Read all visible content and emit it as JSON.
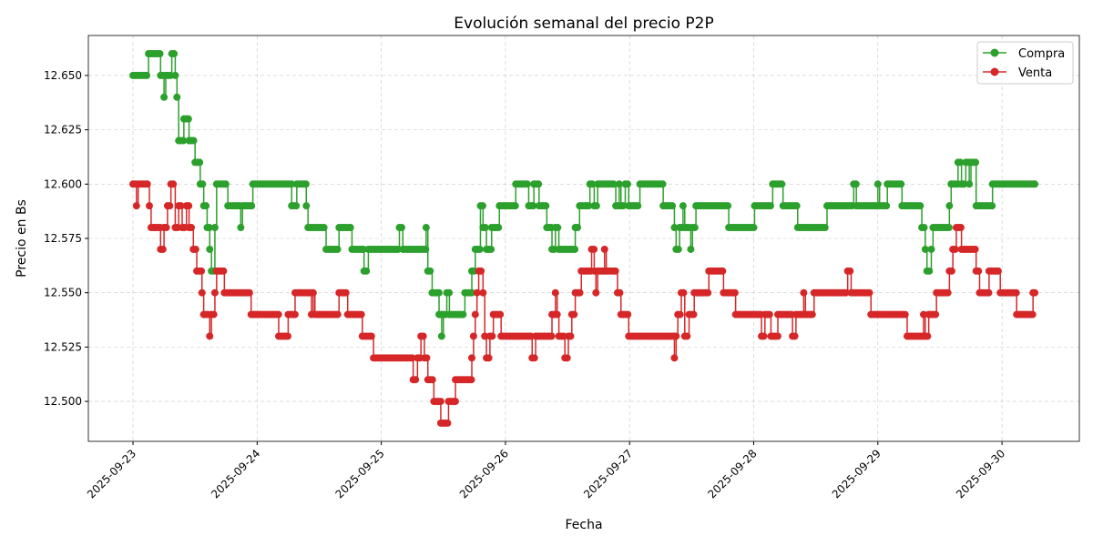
{
  "chart_data": {
    "type": "line",
    "title": "Evolución semanal del precio P2P",
    "xlabel": "Fecha",
    "ylabel": "Precio en Bs",
    "xlim": [
      "2025-09-22 15:22",
      "2025-09-30 14:57"
    ],
    "ylim": [
      12.4816,
      12.6684
    ],
    "x_ticks": [
      "2025-09-23",
      "2025-09-24",
      "2025-09-25",
      "2025-09-26",
      "2025-09-27",
      "2025-09-28",
      "2025-09-29",
      "2025-09-30"
    ],
    "y_ticks": [
      "12.500",
      "12.525",
      "12.550",
      "12.575",
      "12.600",
      "12.625",
      "12.650"
    ],
    "grid": true,
    "legend_position": "top-right",
    "series": [
      {
        "name": "Compra",
        "color": "#2ca02c",
        "marker": "circle",
        "points": [
          [
            "2025-09-23 00:00",
            12.65
          ],
          [
            "2025-09-23 03:00",
            12.66
          ],
          [
            "2025-09-23 05:20",
            12.65
          ],
          [
            "2025-09-23 06:00",
            12.64
          ],
          [
            "2025-09-23 06:20",
            12.65
          ],
          [
            "2025-09-23 07:30",
            12.66
          ],
          [
            "2025-09-23 08:10",
            12.65
          ],
          [
            "2025-09-23 08:30",
            12.64
          ],
          [
            "2025-09-23 08:50",
            12.62
          ],
          [
            "2025-09-23 09:50",
            12.63
          ],
          [
            "2025-09-23 10:50",
            12.62
          ],
          [
            "2025-09-23 12:00",
            12.61
          ],
          [
            "2025-09-23 13:00",
            12.6
          ],
          [
            "2025-09-23 13:40",
            12.59
          ],
          [
            "2025-09-23 14:20",
            12.58
          ],
          [
            "2025-09-23 14:50",
            12.57
          ],
          [
            "2025-09-23 15:10",
            12.56
          ],
          [
            "2025-09-23 15:50",
            12.58
          ],
          [
            "2025-09-23 16:10",
            12.6
          ],
          [
            "2025-09-23 18:20",
            12.59
          ],
          [
            "2025-09-23 20:50",
            12.58
          ],
          [
            "2025-09-23 21:10",
            12.59
          ],
          [
            "2025-09-23 23:10",
            12.6
          ],
          [
            "2025-09-24 06:40",
            12.59
          ],
          [
            "2025-09-24 07:40",
            12.6
          ],
          [
            "2025-09-24 09:30",
            12.59
          ],
          [
            "2025-09-24 09:50",
            12.58
          ],
          [
            "2025-09-24 13:20",
            12.57
          ],
          [
            "2025-09-24 15:50",
            12.58
          ],
          [
            "2025-09-24 18:20",
            12.57
          ],
          [
            "2025-09-24 20:40",
            12.56
          ],
          [
            "2025-09-24 21:30",
            12.57
          ],
          [
            "2025-09-25 03:30",
            12.58
          ],
          [
            "2025-09-25 04:10",
            12.57
          ],
          [
            "2025-09-25 08:40",
            12.58
          ],
          [
            "2025-09-25 09:00",
            12.56
          ],
          [
            "2025-09-25 09:50",
            12.55
          ],
          [
            "2025-09-25 11:10",
            12.54
          ],
          [
            "2025-09-25 11:40",
            12.53
          ],
          [
            "2025-09-25 12:00",
            12.54
          ],
          [
            "2025-09-25 12:40",
            12.55
          ],
          [
            "2025-09-25 13:10",
            12.54
          ],
          [
            "2025-09-25 16:10",
            12.55
          ],
          [
            "2025-09-25 17:30",
            12.56
          ],
          [
            "2025-09-25 18:10",
            12.57
          ],
          [
            "2025-09-25 19:10",
            12.59
          ],
          [
            "2025-09-25 19:40",
            12.58
          ],
          [
            "2025-09-25 20:20",
            12.57
          ],
          [
            "2025-09-25 21:20",
            12.58
          ],
          [
            "2025-09-25 22:50",
            12.59
          ],
          [
            "2025-09-26 02:00",
            12.6
          ],
          [
            "2025-09-26 04:30",
            12.59
          ],
          [
            "2025-09-26 05:30",
            12.6
          ],
          [
            "2025-09-26 06:30",
            12.59
          ],
          [
            "2025-09-26 08:00",
            12.58
          ],
          [
            "2025-09-26 09:00",
            12.57
          ],
          [
            "2025-09-26 09:40",
            12.58
          ],
          [
            "2025-09-26 10:20",
            12.57
          ],
          [
            "2025-09-26 13:30",
            12.58
          ],
          [
            "2025-09-26 14:20",
            12.59
          ],
          [
            "2025-09-26 16:20",
            12.6
          ],
          [
            "2025-09-26 17:10",
            12.59
          ],
          [
            "2025-09-26 17:50",
            12.6
          ],
          [
            "2025-09-26 21:20",
            12.59
          ],
          [
            "2025-09-26 22:00",
            12.6
          ],
          [
            "2025-09-26 22:20",
            12.59
          ],
          [
            "2025-09-26 23:10",
            12.6
          ],
          [
            "2025-09-26 23:50",
            12.59
          ],
          [
            "2025-09-27 02:00",
            12.6
          ],
          [
            "2025-09-27 06:30",
            12.59
          ],
          [
            "2025-09-27 08:40",
            12.58
          ],
          [
            "2025-09-27 09:00",
            12.57
          ],
          [
            "2025-09-27 09:40",
            12.58
          ],
          [
            "2025-09-27 10:20",
            12.59
          ],
          [
            "2025-09-27 10:40",
            12.58
          ],
          [
            "2025-09-27 11:50",
            12.57
          ],
          [
            "2025-09-27 12:10",
            12.58
          ],
          [
            "2025-09-27 12:50",
            12.59
          ],
          [
            "2025-09-27 19:10",
            12.58
          ],
          [
            "2025-09-28 00:10",
            12.59
          ],
          [
            "2025-09-28 03:40",
            12.6
          ],
          [
            "2025-09-28 05:40",
            12.59
          ],
          [
            "2025-09-28 08:30",
            12.58
          ],
          [
            "2025-09-28 14:10",
            12.59
          ],
          [
            "2025-09-28 19:20",
            12.6
          ],
          [
            "2025-09-28 19:50",
            12.59
          ],
          [
            "2025-09-29 00:00",
            12.6
          ],
          [
            "2025-09-29 00:20",
            12.59
          ],
          [
            "2025-09-29 01:50",
            12.6
          ],
          [
            "2025-09-29 04:40",
            12.59
          ],
          [
            "2025-09-29 08:30",
            12.58
          ],
          [
            "2025-09-29 09:10",
            12.57
          ],
          [
            "2025-09-29 09:30",
            12.56
          ],
          [
            "2025-09-29 10:20",
            12.57
          ],
          [
            "2025-09-29 10:40",
            12.58
          ],
          [
            "2025-09-29 13:50",
            12.59
          ],
          [
            "2025-09-29 14:10",
            12.6
          ],
          [
            "2025-09-29 15:30",
            12.61
          ],
          [
            "2025-09-29 16:10",
            12.6
          ],
          [
            "2025-09-29 17:00",
            12.61
          ],
          [
            "2025-09-29 17:40",
            12.6
          ],
          [
            "2025-09-29 18:00",
            12.61
          ],
          [
            "2025-09-29 19:00",
            12.59
          ],
          [
            "2025-09-29 22:10",
            12.6
          ],
          [
            "2025-09-30 06:20",
            12.6
          ]
        ]
      },
      {
        "name": "Venta",
        "color": "#d62728",
        "marker": "circle",
        "points": [
          [
            "2025-09-23 00:00",
            12.6
          ],
          [
            "2025-09-23 00:40",
            12.59
          ],
          [
            "2025-09-23 01:00",
            12.6
          ],
          [
            "2025-09-23 03:10",
            12.59
          ],
          [
            "2025-09-23 03:30",
            12.58
          ],
          [
            "2025-09-23 05:20",
            12.57
          ],
          [
            "2025-09-23 06:00",
            12.58
          ],
          [
            "2025-09-23 06:40",
            12.59
          ],
          [
            "2025-09-23 07:20",
            12.6
          ],
          [
            "2025-09-23 08:10",
            12.58
          ],
          [
            "2025-09-23 08:50",
            12.59
          ],
          [
            "2025-09-23 09:30",
            12.58
          ],
          [
            "2025-09-23 10:20",
            12.59
          ],
          [
            "2025-09-23 10:50",
            12.58
          ],
          [
            "2025-09-23 11:40",
            12.57
          ],
          [
            "2025-09-23 12:20",
            12.56
          ],
          [
            "2025-09-23 13:20",
            12.55
          ],
          [
            "2025-09-23 13:40",
            12.54
          ],
          [
            "2025-09-23 14:50",
            12.53
          ],
          [
            "2025-09-23 15:10",
            12.54
          ],
          [
            "2025-09-23 15:50",
            12.55
          ],
          [
            "2025-09-23 16:10",
            12.56
          ],
          [
            "2025-09-23 17:40",
            12.55
          ],
          [
            "2025-09-23 22:50",
            12.54
          ],
          [
            "2025-09-24 04:10",
            12.53
          ],
          [
            "2025-09-24 06:00",
            12.54
          ],
          [
            "2025-09-24 07:20",
            12.55
          ],
          [
            "2025-09-24 10:30",
            12.54
          ],
          [
            "2025-09-24 10:50",
            12.55
          ],
          [
            "2025-09-24 11:10",
            12.54
          ],
          [
            "2025-09-24 15:50",
            12.55
          ],
          [
            "2025-09-24 17:30",
            12.54
          ],
          [
            "2025-09-24 20:20",
            12.53
          ],
          [
            "2025-09-24 22:30",
            12.52
          ],
          [
            "2025-09-25 06:10",
            12.51
          ],
          [
            "2025-09-25 07:00",
            12.52
          ],
          [
            "2025-09-25 07:40",
            12.53
          ],
          [
            "2025-09-25 08:20",
            12.52
          ],
          [
            "2025-09-25 09:00",
            12.51
          ],
          [
            "2025-09-25 10:10",
            12.5
          ],
          [
            "2025-09-25 11:30",
            12.49
          ],
          [
            "2025-09-25 13:00",
            12.5
          ],
          [
            "2025-09-25 14:20",
            12.51
          ],
          [
            "2025-09-25 17:30",
            12.52
          ],
          [
            "2025-09-25 17:50",
            12.53
          ],
          [
            "2025-09-25 18:10",
            12.54
          ],
          [
            "2025-09-25 18:30",
            12.55
          ],
          [
            "2025-09-25 18:50",
            12.56
          ],
          [
            "2025-09-25 19:40",
            12.55
          ],
          [
            "2025-09-25 20:00",
            12.53
          ],
          [
            "2025-09-25 20:20",
            12.52
          ],
          [
            "2025-09-25 21:00",
            12.53
          ],
          [
            "2025-09-25 21:40",
            12.54
          ],
          [
            "2025-09-25 23:10",
            12.53
          ],
          [
            "2025-09-26 05:10",
            12.52
          ],
          [
            "2025-09-26 05:50",
            12.53
          ],
          [
            "2025-09-26 09:00",
            12.54
          ],
          [
            "2025-09-26 09:40",
            12.55
          ],
          [
            "2025-09-26 10:00",
            12.54
          ],
          [
            "2025-09-26 10:20",
            12.53
          ],
          [
            "2025-09-26 11:30",
            12.52
          ],
          [
            "2025-09-26 12:10",
            12.53
          ],
          [
            "2025-09-26 12:50",
            12.54
          ],
          [
            "2025-09-26 13:30",
            12.55
          ],
          [
            "2025-09-26 14:40",
            12.56
          ],
          [
            "2025-09-26 16:40",
            12.57
          ],
          [
            "2025-09-26 17:10",
            12.56
          ],
          [
            "2025-09-26 17:30",
            12.55
          ],
          [
            "2025-09-26 17:50",
            12.56
          ],
          [
            "2025-09-26 19:10",
            12.57
          ],
          [
            "2025-09-26 19:30",
            12.56
          ],
          [
            "2025-09-26 21:40",
            12.55
          ],
          [
            "2025-09-26 22:20",
            12.54
          ],
          [
            "2025-09-26 23:50",
            12.53
          ],
          [
            "2025-09-27 08:40",
            12.52
          ],
          [
            "2025-09-27 09:00",
            12.53
          ],
          [
            "2025-09-27 09:20",
            12.54
          ],
          [
            "2025-09-27 10:00",
            12.55
          ],
          [
            "2025-09-27 10:40",
            12.53
          ],
          [
            "2025-09-27 11:30",
            12.54
          ],
          [
            "2025-09-27 12:30",
            12.55
          ],
          [
            "2025-09-27 15:20",
            12.56
          ],
          [
            "2025-09-27 18:10",
            12.55
          ],
          [
            "2025-09-27 20:30",
            12.54
          ],
          [
            "2025-09-28 01:30",
            12.53
          ],
          [
            "2025-09-28 02:10",
            12.54
          ],
          [
            "2025-09-28 03:20",
            12.53
          ],
          [
            "2025-09-28 04:40",
            12.54
          ],
          [
            "2025-09-28 07:30",
            12.53
          ],
          [
            "2025-09-28 08:10",
            12.54
          ],
          [
            "2025-09-28 09:40",
            12.55
          ],
          [
            "2025-09-28 10:00",
            12.54
          ],
          [
            "2025-09-28 11:40",
            12.55
          ],
          [
            "2025-09-28 18:10",
            12.56
          ],
          [
            "2025-09-28 18:50",
            12.55
          ],
          [
            "2025-09-28 22:40",
            12.54
          ],
          [
            "2025-09-29 05:40",
            12.53
          ],
          [
            "2025-09-29 08:50",
            12.54
          ],
          [
            "2025-09-29 09:10",
            12.53
          ],
          [
            "2025-09-29 09:50",
            12.54
          ],
          [
            "2025-09-29 11:20",
            12.55
          ],
          [
            "2025-09-29 13:50",
            12.56
          ],
          [
            "2025-09-29 14:30",
            12.57
          ],
          [
            "2025-09-29 15:10",
            12.58
          ],
          [
            "2025-09-29 16:10",
            12.57
          ],
          [
            "2025-09-29 19:00",
            12.56
          ],
          [
            "2025-09-29 19:40",
            12.55
          ],
          [
            "2025-09-29 21:30",
            12.56
          ],
          [
            "2025-09-29 23:40",
            12.55
          ],
          [
            "2025-09-30 02:50",
            12.54
          ],
          [
            "2025-09-30 06:00",
            12.55
          ],
          [
            "2025-09-30 06:20",
            12.55
          ]
        ]
      }
    ]
  }
}
